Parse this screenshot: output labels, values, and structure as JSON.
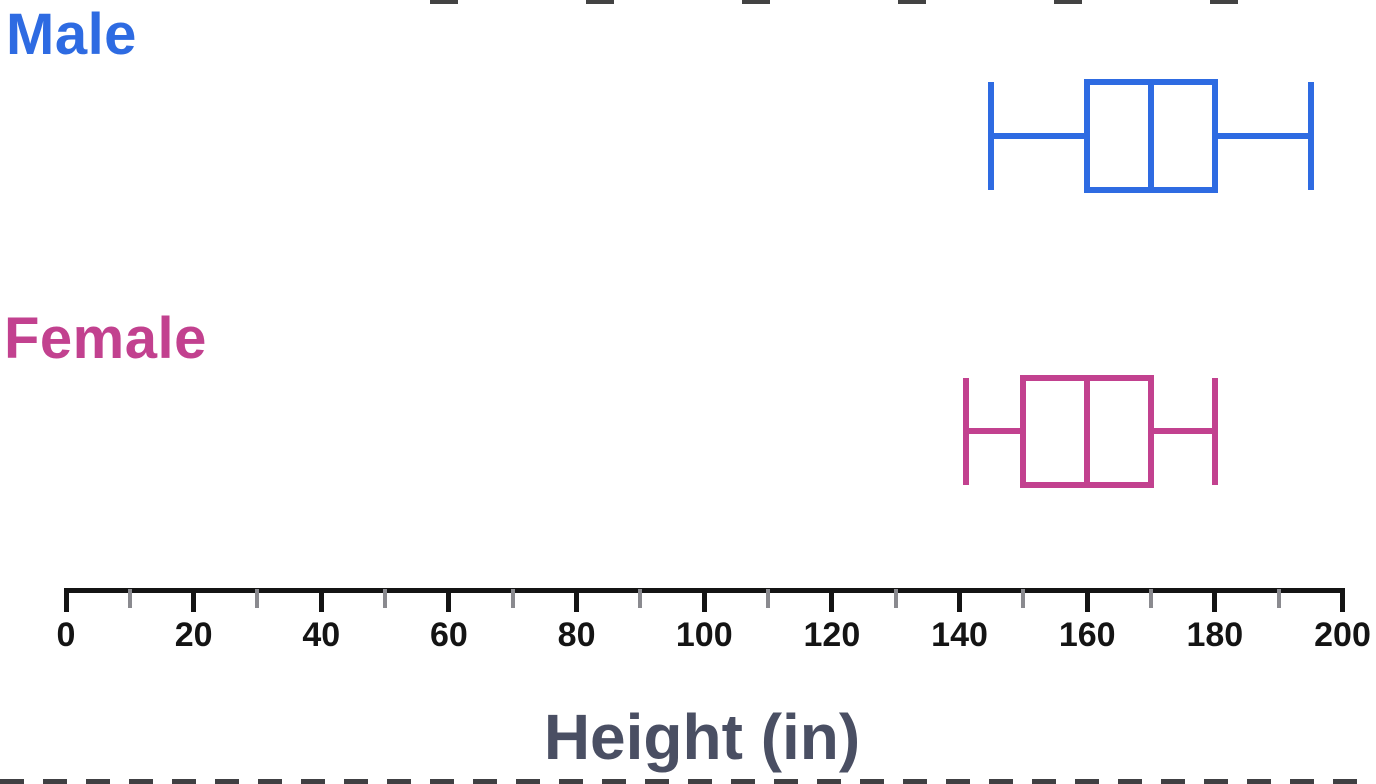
{
  "chart_data": {
    "type": "boxplot",
    "orientation": "horizontal",
    "title": "",
    "xlabel": "Height (in)",
    "legend_position": "left-row-labels",
    "grid": false,
    "axis": {
      "min": 0,
      "max": 200,
      "major_tick_step": 20,
      "minor_tick_step": 10,
      "major_tick_labels": [
        "0",
        "20",
        "40",
        "60",
        "80",
        "100",
        "120",
        "140",
        "160",
        "180",
        "200"
      ]
    },
    "series": [
      {
        "name": "Male",
        "color": "#2e6be2",
        "min": 145,
        "q1": 160,
        "median": 170,
        "q3": 180,
        "max": 195
      },
      {
        "name": "Female",
        "color": "#c2418f",
        "min": 141,
        "q1": 150,
        "median": 160,
        "q3": 170,
        "max": 180
      }
    ],
    "colors": {
      "axis": "#141414",
      "minor_tick": "#8a8a8f",
      "axis_title": "#4a4f63"
    }
  }
}
